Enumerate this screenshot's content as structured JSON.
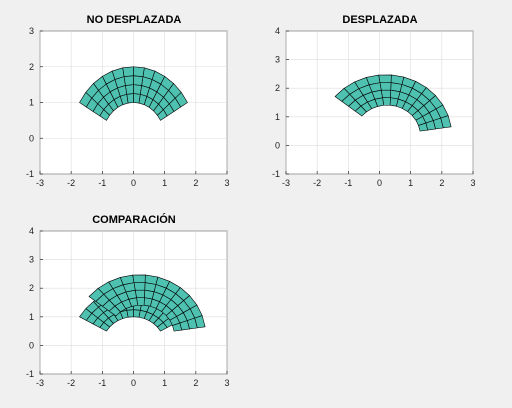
{
  "figure": {
    "background": "#f0f0f0",
    "mesh_color": "#4fc1b1",
    "edge_color": "#000000"
  },
  "chart_data": [
    {
      "type": "mesh",
      "title": "NO DESPLAZADA",
      "xlim": [
        -3,
        3
      ],
      "ylim": [
        -1,
        3
      ],
      "xticks": [
        -3,
        -2,
        -1,
        0,
        1,
        2,
        3
      ],
      "yticks": [
        -1,
        0,
        1,
        2,
        3
      ],
      "grid": true,
      "mesh": {
        "inner_radius": 1,
        "outer_radius": 2,
        "start_angle_deg": 30,
        "end_angle_deg": 150,
        "radial_divisions": 4,
        "angular_divisions": 12
      },
      "layers": [
        "original"
      ]
    },
    {
      "type": "mesh",
      "title": "DESPLAZADA",
      "xlim": [
        -3,
        3
      ],
      "ylim": [
        -1,
        4
      ],
      "xticks": [
        -3,
        -2,
        -1,
        0,
        1,
        2,
        3
      ],
      "yticks": [
        -1,
        0,
        1,
        2,
        3,
        4
      ],
      "grid": true,
      "layers": [
        "displaced"
      ]
    },
    {
      "type": "mesh",
      "title": "COMPARACIÓN",
      "xlim": [
        -3,
        3
      ],
      "ylim": [
        -1,
        4
      ],
      "xticks": [
        -3,
        -2,
        -1,
        0,
        1,
        2,
        3
      ],
      "yticks": [
        -1,
        0,
        1,
        2,
        3,
        4
      ],
      "grid": true,
      "layers": [
        "original",
        "displaced"
      ]
    }
  ]
}
